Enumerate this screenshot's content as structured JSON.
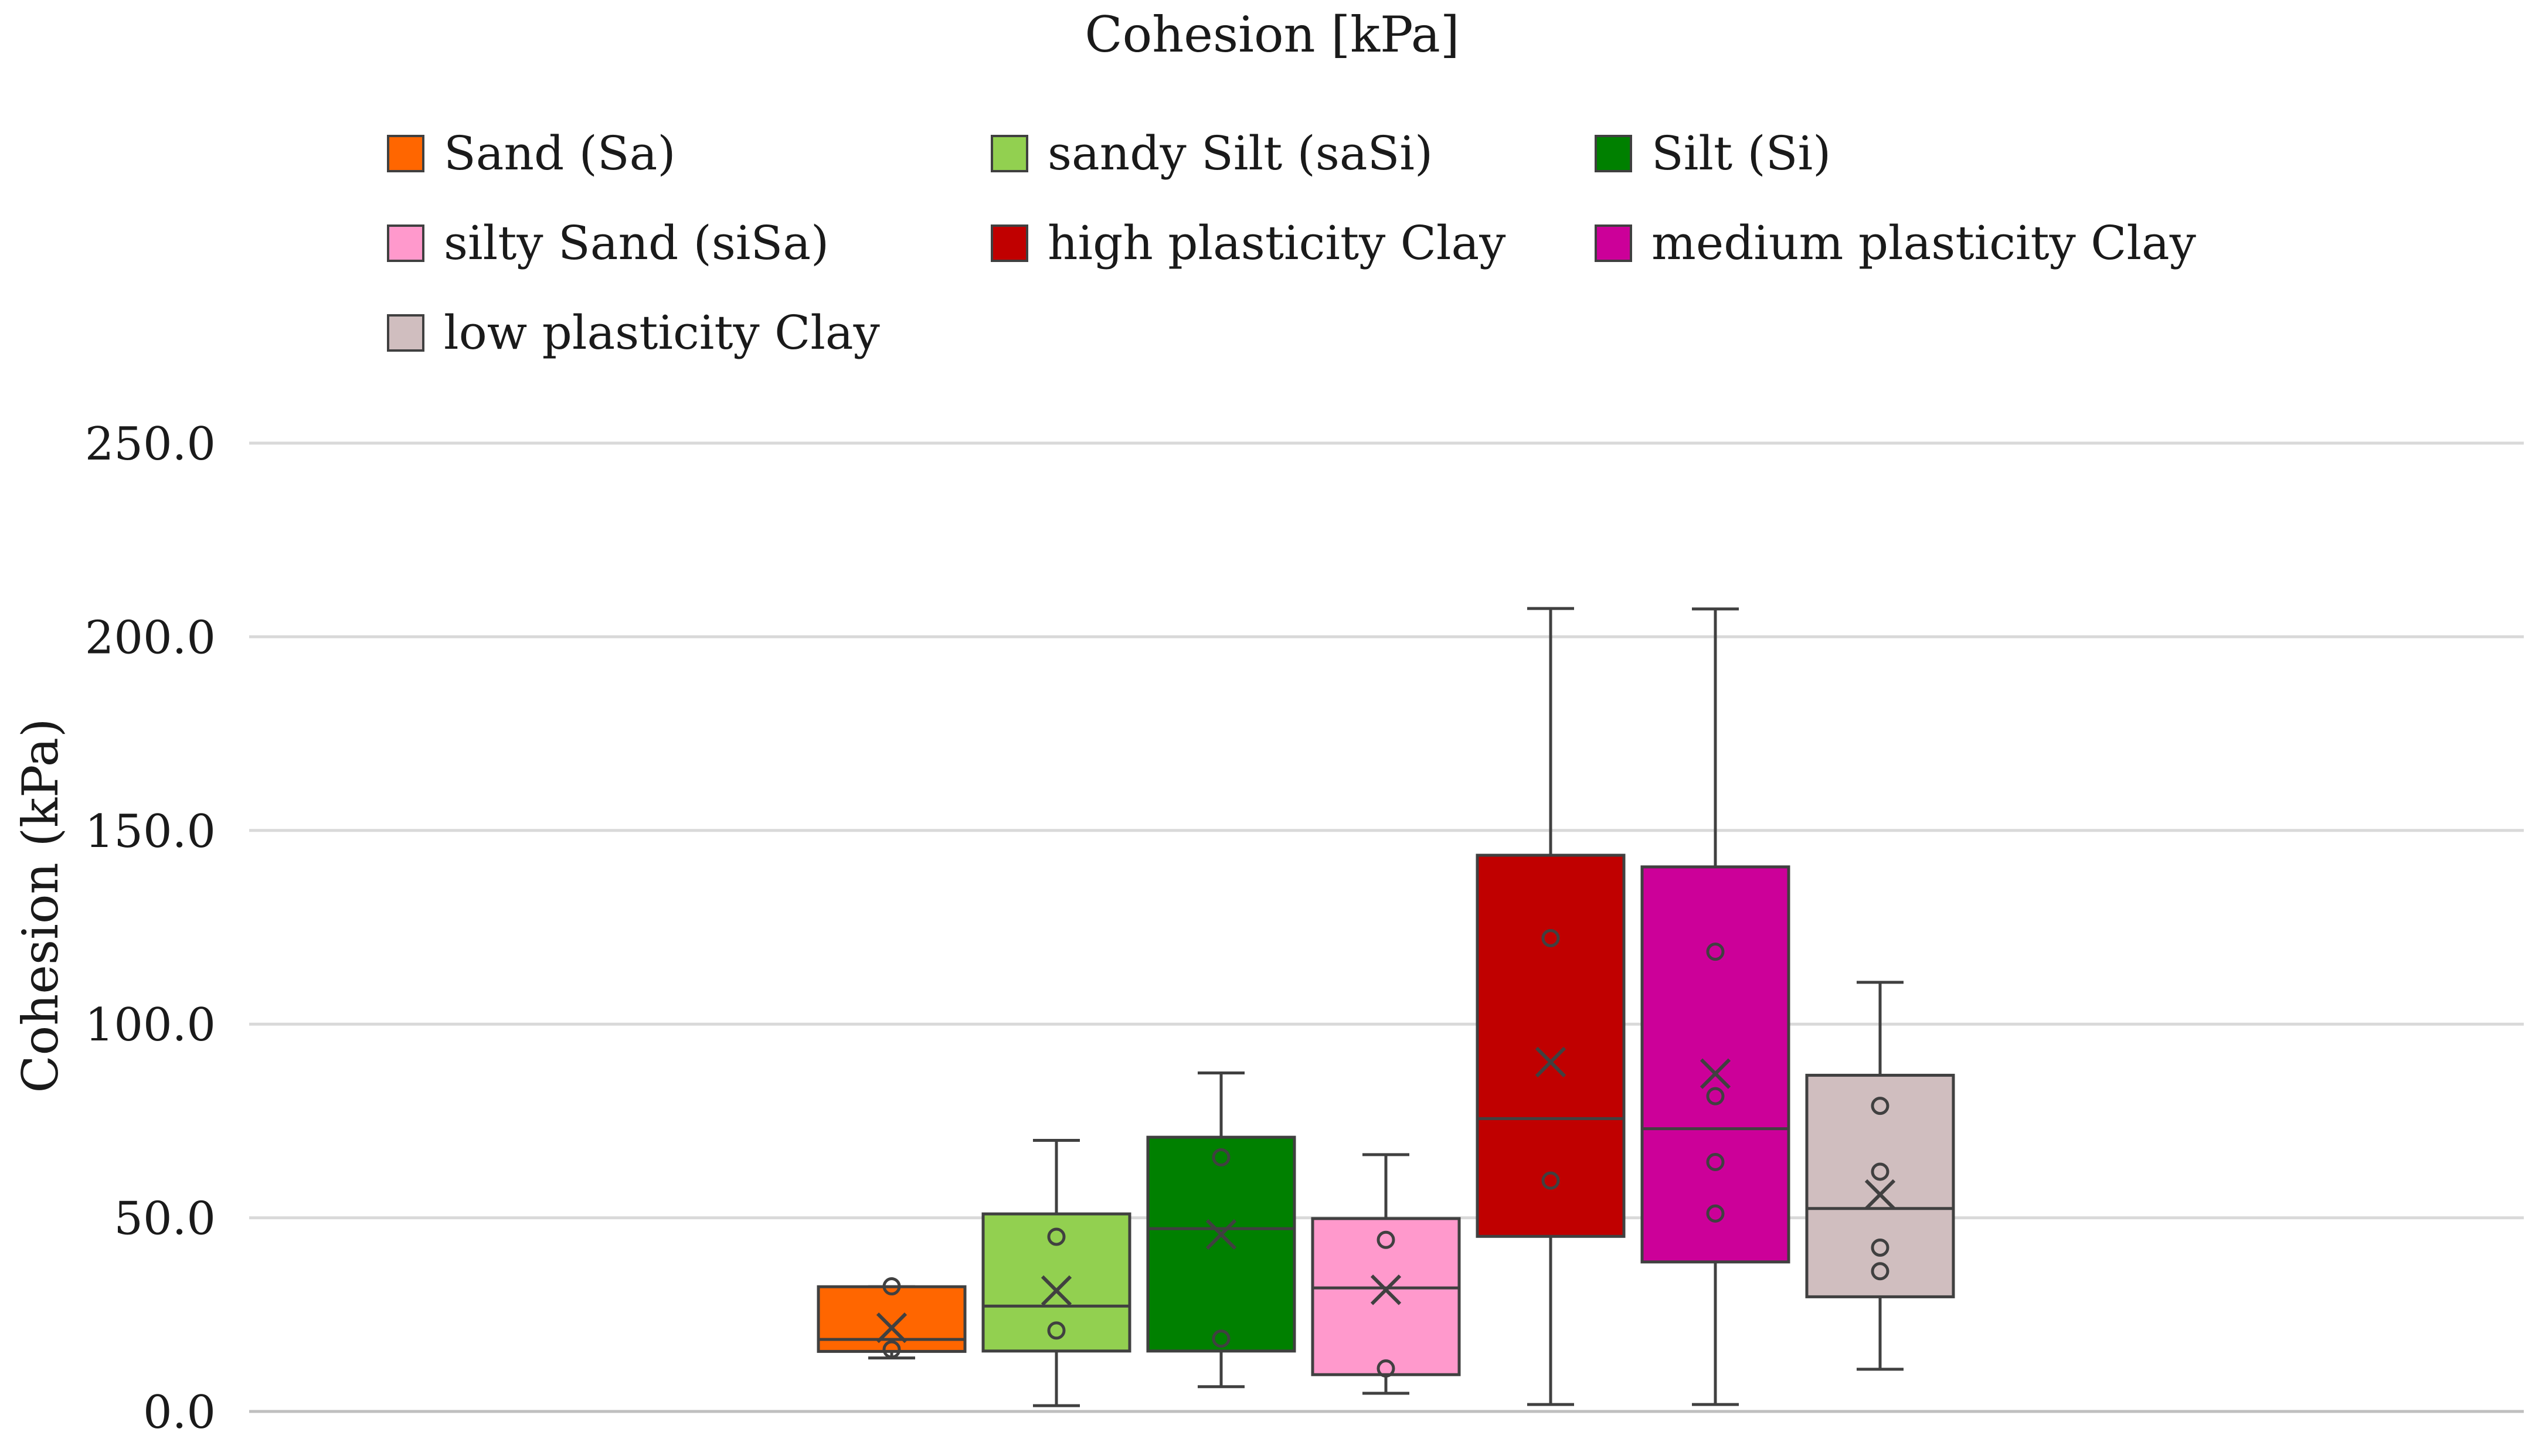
{
  "chart_data": {
    "type": "boxplot",
    "title": "Cohesion [kPa]",
    "xlabel": "",
    "ylabel": "Cohesion (kPa)",
    "ylim": [
      0,
      250
    ],
    "yticks": [
      "0.0",
      "50.0",
      "100.0",
      "150.0",
      "200.0",
      "250.0"
    ],
    "ytick_values": [
      0,
      50,
      100,
      150,
      200,
      250
    ],
    "grid": true,
    "legend_position": "top",
    "series": [
      {
        "name": "Sand (Sa)",
        "color": "#FF6600",
        "whisker_low": 13.8,
        "q1": 15.5,
        "median": 18.6,
        "q3": 32.2,
        "whisker_high": 32.2,
        "mean": 21.6,
        "points": [
          32.3,
          16.0
        ]
      },
      {
        "name": "sandy Silt (saSi)",
        "color": "#92D050",
        "whisker_low": 1.5,
        "q1": 15.6,
        "median": 27.2,
        "q3": 51.0,
        "whisker_high": 70.0,
        "mean": 31.2,
        "points": [
          45.1,
          20.9
        ]
      },
      {
        "name": "Silt (Si)",
        "color": "#008000",
        "whisker_low": 6.4,
        "q1": 15.6,
        "median": 47.2,
        "q3": 70.8,
        "whisker_high": 87.4,
        "mean": 45.7,
        "points": [
          65.6,
          18.8
        ]
      },
      {
        "name": "silty Sand (siSa)",
        "color": "#FF99CC",
        "whisker_low": 4.7,
        "q1": 9.5,
        "median": 31.9,
        "q3": 49.8,
        "whisker_high": 66.3,
        "mean": 31.4,
        "points": [
          44.3,
          11.1
        ]
      },
      {
        "name": "high plasticity Clay",
        "color": "#C00000",
        "whisker_low": 1.8,
        "q1": 45.2,
        "median": 75.6,
        "q3": 143.6,
        "whisker_high": 207.3,
        "mean": 90.2,
        "points": [
          122.2,
          59.6
        ]
      },
      {
        "name": "medium plasticity Clay",
        "color": "#CC0099",
        "whisker_low": 1.8,
        "q1": 38.6,
        "median": 73.0,
        "q3": 140.6,
        "whisker_high": 207.2,
        "mean": 87.2,
        "points": [
          118.7,
          81.4,
          64.4,
          51.1
        ]
      },
      {
        "name": "low plasticity Clay",
        "color": "#D0BEBF",
        "whisker_low": 10.9,
        "q1": 29.6,
        "median": 52.4,
        "q3": 86.8,
        "whisker_high": 110.8,
        "mean": 56.0,
        "points": [
          78.9,
          61.9,
          42.3,
          36.2
        ]
      }
    ]
  },
  "colors": {
    "gridline": "#D9D9D9",
    "outline": "#404040",
    "text": "#1a1a1a"
  }
}
